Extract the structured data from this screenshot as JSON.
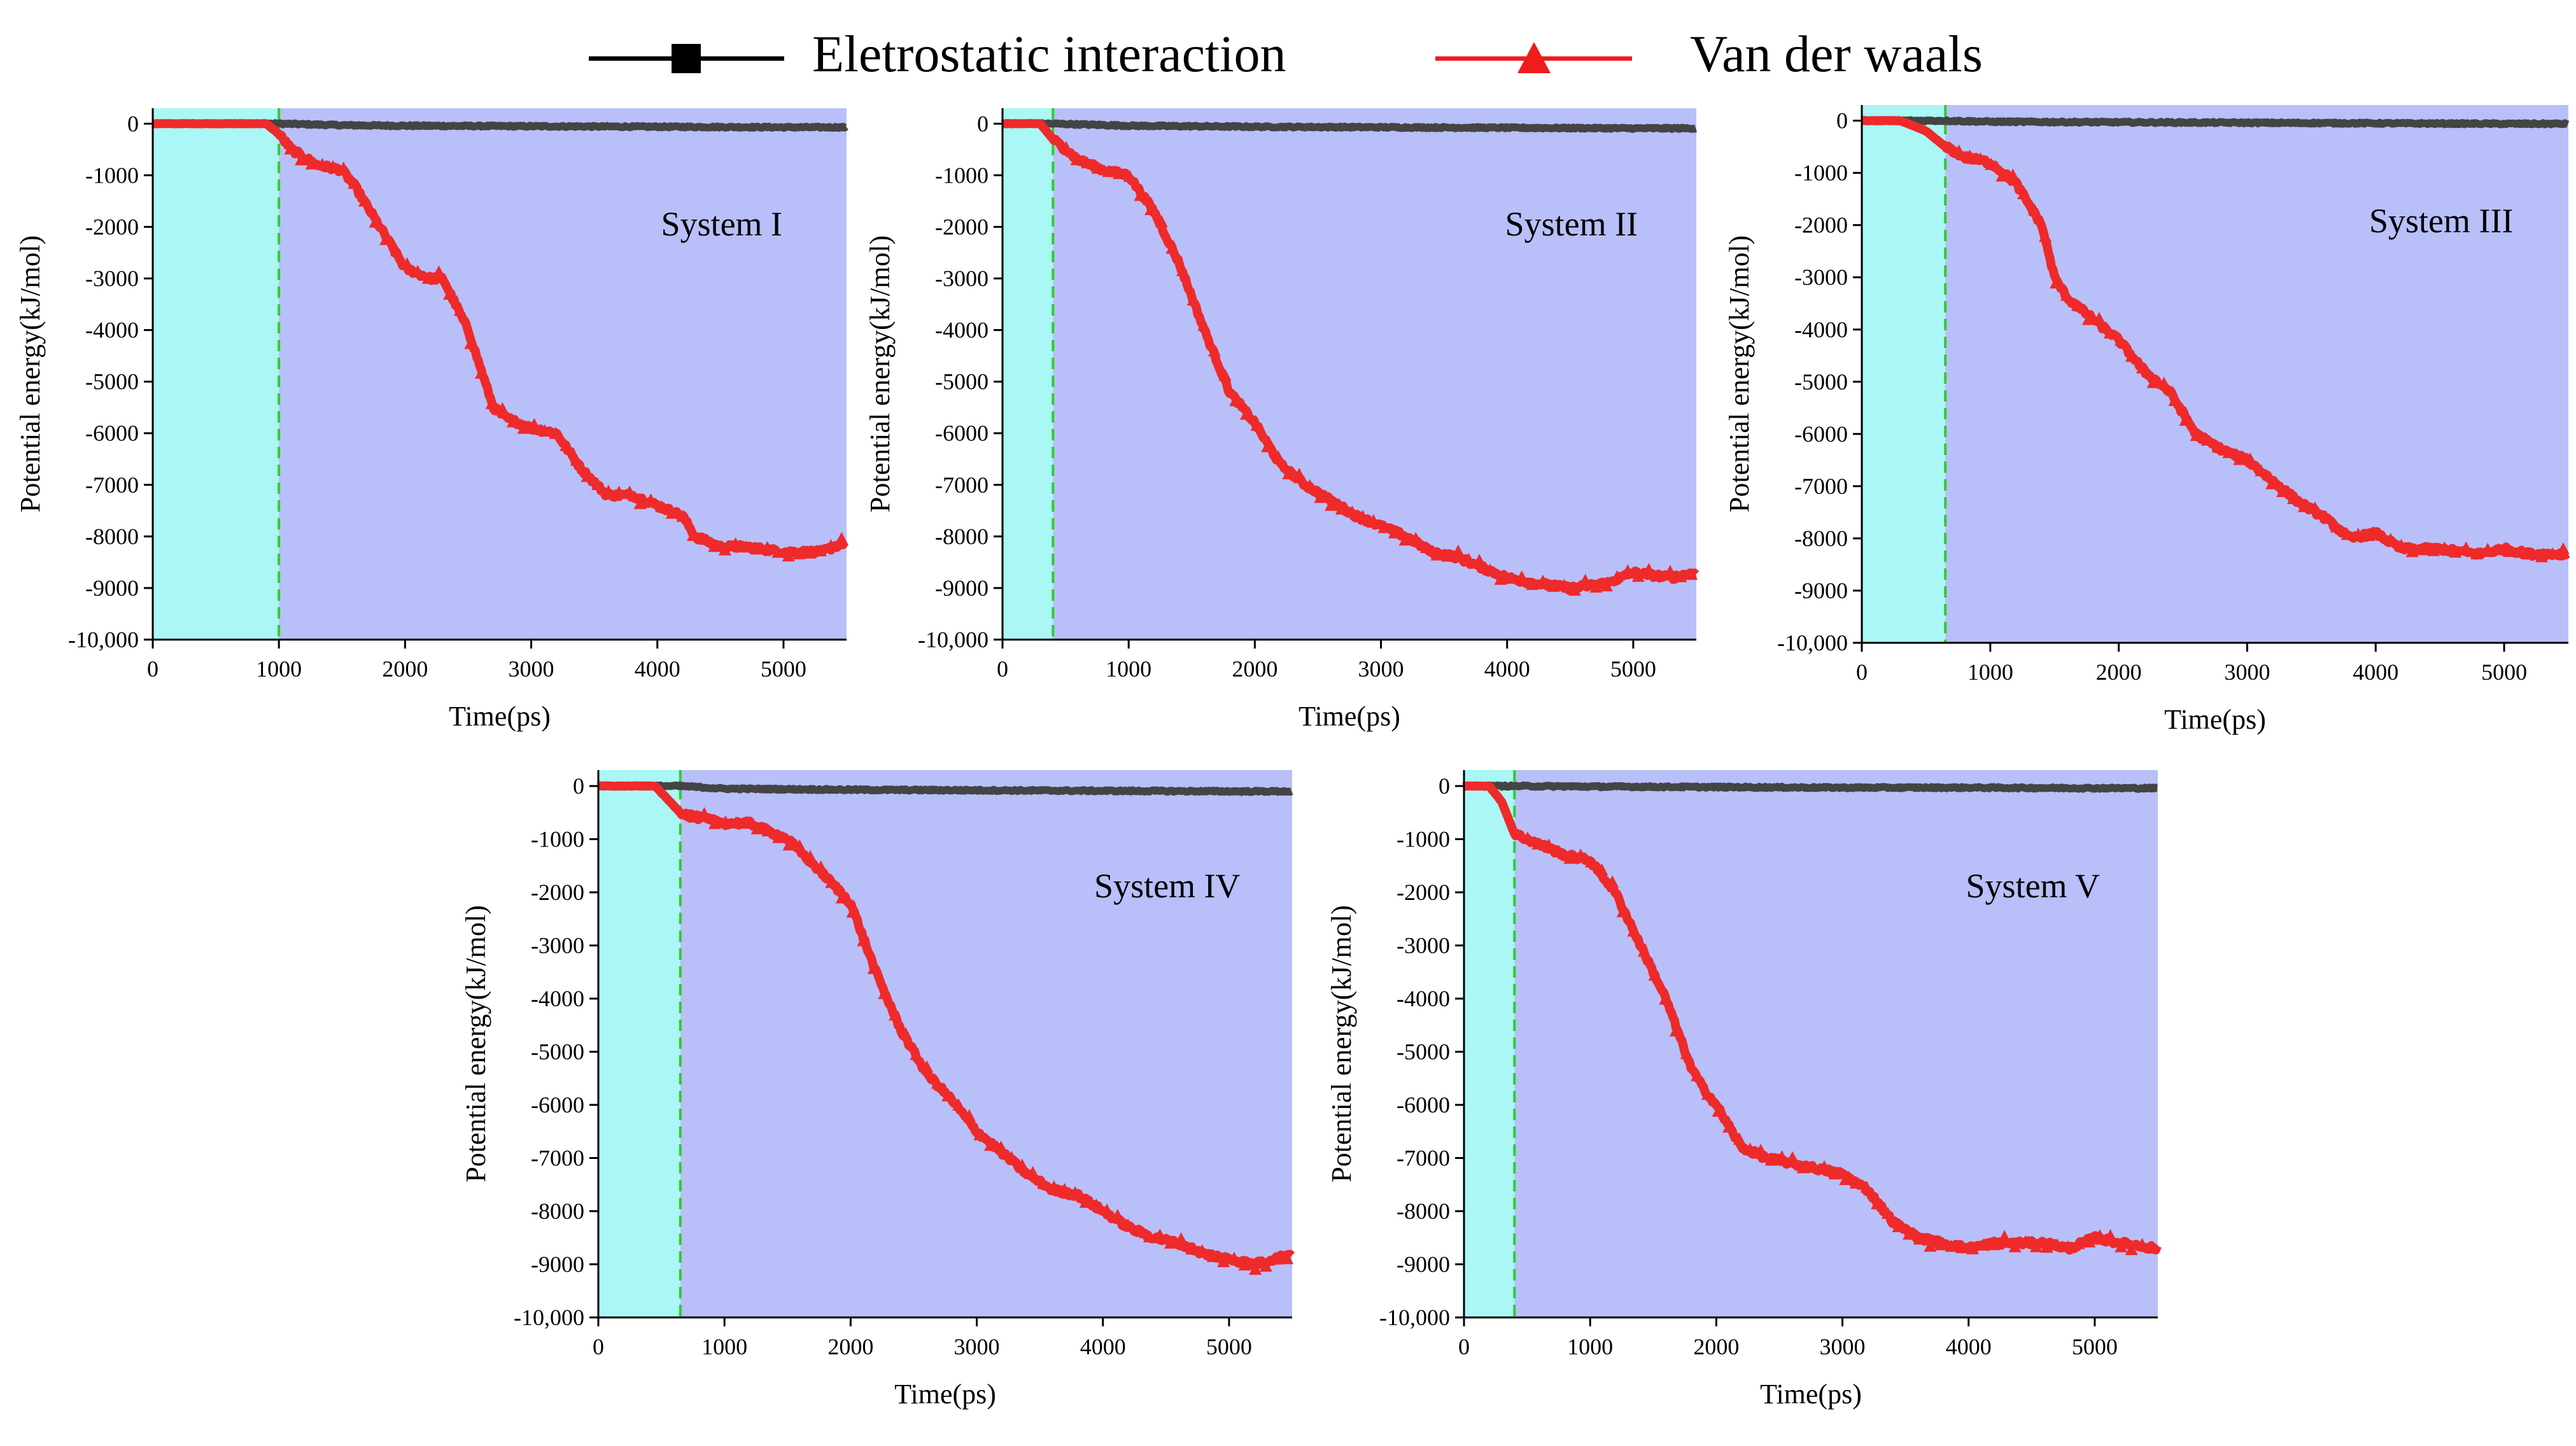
{
  "legend": [
    {
      "name": "Eletrostatic interaction",
      "color": "#000000",
      "marker": "square"
    },
    {
      "name": "Van der waals",
      "color": "#ee1c1c",
      "marker": "triangle"
    }
  ],
  "colors": {
    "equilibration_region": "#aaf7f5",
    "production_region": "#b9bff8",
    "divider": "#2ecc2e",
    "electrostatic_line": "#444444",
    "vdw_line": "#ee2a2a"
  },
  "chart_data": [
    {
      "type": "line",
      "title": "System I",
      "xlabel": "Time(ps)",
      "ylabel": "Potential energy(kJ/mol)",
      "xlim": [
        0,
        5500
      ],
      "ylim": [
        -10000,
        300
      ],
      "xticks": [
        0,
        1000,
        2000,
        3000,
        4000,
        5000
      ],
      "yticks": [
        0,
        -1000,
        -2000,
        -3000,
        -4000,
        -5000,
        -6000,
        -7000,
        -8000,
        -9000,
        -10000
      ],
      "ytick_labels": [
        "0",
        "-1000",
        "-2000",
        "-3000",
        "-4000",
        "-5000",
        "-6000",
        "-7000",
        "-8000",
        "-9000",
        "-10,000"
      ],
      "transition_time": 1000,
      "series": [
        {
          "name": "Eletrostatic interaction",
          "x": [
            0,
            1000,
            1500,
            2000,
            3000,
            4000,
            5000,
            5500
          ],
          "y": [
            0,
            0,
            -30,
            -40,
            -50,
            -60,
            -70,
            -70
          ]
        },
        {
          "name": "Van der waals",
          "x": [
            0,
            900,
            1000,
            1100,
            1300,
            1500,
            1600,
            1800,
            2000,
            2200,
            2300,
            2500,
            2700,
            2800,
            3000,
            3200,
            3400,
            3600,
            3800,
            4000,
            4200,
            4300,
            4500,
            4700,
            5000,
            5300,
            5500
          ],
          "y": [
            0,
            0,
            -200,
            -500,
            -800,
            -900,
            -1200,
            -2000,
            -2800,
            -3000,
            -3000,
            -4000,
            -5500,
            -5700,
            -5900,
            -6000,
            -6700,
            -7200,
            -7200,
            -7400,
            -7600,
            -8000,
            -8200,
            -8200,
            -8300,
            -8300,
            -8100
          ]
        }
      ]
    },
    {
      "type": "line",
      "title": "System II",
      "xlabel": "Time(ps)",
      "ylabel": "Potential energy(kJ/mol)",
      "xlim": [
        0,
        5500
      ],
      "ylim": [
        -10000,
        300
      ],
      "xticks": [
        0,
        1000,
        2000,
        3000,
        4000,
        5000
      ],
      "yticks": [
        0,
        -1000,
        -2000,
        -3000,
        -4000,
        -5000,
        -6000,
        -7000,
        -8000,
        -9000,
        -10000
      ],
      "ytick_labels": [
        "0",
        "-1000",
        "-2000",
        "-3000",
        "-4000",
        "-5000",
        "-6000",
        "-7000",
        "-8000",
        "-9000",
        "-10,000"
      ],
      "transition_time": 400,
      "series": [
        {
          "name": "Eletrostatic interaction",
          "x": [
            0,
            400,
            1000,
            2000,
            3000,
            4000,
            5000,
            5500
          ],
          "y": [
            0,
            0,
            -40,
            -60,
            -70,
            -80,
            -90,
            -90
          ]
        },
        {
          "name": "Van der waals",
          "x": [
            0,
            300,
            400,
            600,
            800,
            1000,
            1200,
            1400,
            1600,
            1800,
            2000,
            2200,
            2400,
            2600,
            2800,
            3000,
            3200,
            3400,
            3600,
            3800,
            4000,
            4200,
            4500,
            4800,
            5000,
            5300,
            5500
          ],
          "y": [
            0,
            0,
            -300,
            -700,
            -900,
            -1000,
            -1700,
            -2700,
            -4000,
            -5200,
            -5800,
            -6600,
            -7000,
            -7300,
            -7600,
            -7800,
            -8000,
            -8300,
            -8400,
            -8600,
            -8800,
            -8900,
            -9000,
            -8900,
            -8700,
            -8800,
            -8700
          ]
        }
      ]
    },
    {
      "type": "line",
      "title": "System III",
      "xlabel": "Time(ps)",
      "ylabel": "Potential energy(kJ/mol)",
      "xlim": [
        0,
        5500
      ],
      "ylim": [
        -10000,
        300
      ],
      "xticks": [
        0,
        1000,
        2000,
        3000,
        4000,
        5000
      ],
      "yticks": [
        0,
        -1000,
        -2000,
        -3000,
        -4000,
        -5000,
        -6000,
        -7000,
        -8000,
        -9000,
        -10000
      ],
      "ytick_labels": [
        "0",
        "-1000",
        "-2000",
        "-3000",
        "-4000",
        "-5000",
        "-6000",
        "-7000",
        "-8000",
        "-9000",
        "-10,000"
      ],
      "transition_time": 650,
      "series": [
        {
          "name": "Eletrostatic interaction",
          "x": [
            0,
            650,
            1000,
            2000,
            3000,
            4000,
            5000,
            5500
          ],
          "y": [
            0,
            0,
            -20,
            -30,
            -40,
            -50,
            -60,
            -60
          ]
        },
        {
          "name": "Van der waals",
          "x": [
            0,
            300,
            500,
            650,
            800,
            1000,
            1200,
            1400,
            1500,
            1600,
            1800,
            2000,
            2200,
            2400,
            2600,
            2800,
            3000,
            3200,
            3400,
            3600,
            3800,
            4000,
            4200,
            4500,
            4800,
            5000,
            5200,
            5500
          ],
          "y": [
            0,
            0,
            -200,
            -500,
            -700,
            -800,
            -1200,
            -2000,
            -3000,
            -3400,
            -3800,
            -4200,
            -4800,
            -5200,
            -6000,
            -6300,
            -6500,
            -6900,
            -7300,
            -7600,
            -8000,
            -7900,
            -8200,
            -8200,
            -8300,
            -8200,
            -8300,
            -8300
          ]
        }
      ]
    },
    {
      "type": "line",
      "title": "System IV",
      "xlabel": "Time(ps)",
      "ylabel": "Potential energy(kJ/mol)",
      "xlim": [
        0,
        5500
      ],
      "ylim": [
        -10000,
        300
      ],
      "xticks": [
        0,
        1000,
        2000,
        3000,
        4000,
        5000
      ],
      "yticks": [
        0,
        -1000,
        -2000,
        -3000,
        -4000,
        -5000,
        -6000,
        -7000,
        -8000,
        -9000,
        -10000
      ],
      "ytick_labels": [
        "0",
        "-1000",
        "-2000",
        "-3000",
        "-4000",
        "-5000",
        "-6000",
        "-7000",
        "-8000",
        "-9000",
        "-10,000"
      ],
      "transition_time": 650,
      "series": [
        {
          "name": "Eletrostatic interaction",
          "x": [
            0,
            650,
            1000,
            2000,
            3000,
            4000,
            5000,
            5500
          ],
          "y": [
            0,
            0,
            -50,
            -70,
            -80,
            -90,
            -100,
            -100
          ]
        },
        {
          "name": "Van der waals",
          "x": [
            0,
            450,
            650,
            800,
            1000,
            1200,
            1500,
            1800,
            2000,
            2200,
            2400,
            2600,
            2800,
            3000,
            3200,
            3400,
            3600,
            3800,
            4000,
            4200,
            4400,
            4600,
            4800,
            5000,
            5200,
            5500
          ],
          "y": [
            0,
            0,
            -500,
            -600,
            -700,
            -700,
            -1000,
            -1700,
            -2200,
            -3500,
            -4600,
            -5400,
            -5900,
            -6500,
            -6900,
            -7300,
            -7600,
            -7700,
            -8000,
            -8300,
            -8500,
            -8600,
            -8800,
            -8900,
            -9000,
            -8800
          ]
        }
      ]
    },
    {
      "type": "line",
      "title": "System V",
      "xlabel": "Time(ps)",
      "ylabel": "Potential energy(kJ/mol)",
      "xlim": [
        0,
        5500
      ],
      "ylim": [
        -10000,
        300
      ],
      "xticks": [
        0,
        1000,
        2000,
        3000,
        4000,
        5000
      ],
      "yticks": [
        0,
        -1000,
        -2000,
        -3000,
        -4000,
        -5000,
        -6000,
        -7000,
        -8000,
        -9000,
        -10000
      ],
      "ytick_labels": [
        "0",
        "-1000",
        "-2000",
        "-3000",
        "-4000",
        "-5000",
        "-6000",
        "-7000",
        "-8000",
        "-9000",
        "-10,000"
      ],
      "transition_time": 400,
      "series": [
        {
          "name": "Eletrostatic interaction",
          "x": [
            0,
            400,
            1000,
            2000,
            3000,
            4000,
            5000,
            5500
          ],
          "y": [
            0,
            0,
            -10,
            -20,
            -30,
            -30,
            -40,
            -40
          ]
        },
        {
          "name": "Van der waals",
          "x": [
            0,
            200,
            300,
            400,
            600,
            800,
            1000,
            1200,
            1400,
            1600,
            1800,
            1900,
            2000,
            2200,
            2400,
            2600,
            2800,
            3000,
            3200,
            3400,
            3600,
            3800,
            4000,
            4200,
            4400,
            4600,
            4800,
            5000,
            5200,
            5500
          ],
          "y": [
            0,
            0,
            -300,
            -900,
            -1100,
            -1300,
            -1400,
            -2000,
            -3000,
            -4000,
            -5300,
            -5700,
            -6000,
            -6800,
            -7000,
            -7100,
            -7200,
            -7300,
            -7600,
            -8200,
            -8500,
            -8600,
            -8700,
            -8600,
            -8600,
            -8600,
            -8700,
            -8500,
            -8600,
            -8700
          ]
        }
      ]
    }
  ]
}
